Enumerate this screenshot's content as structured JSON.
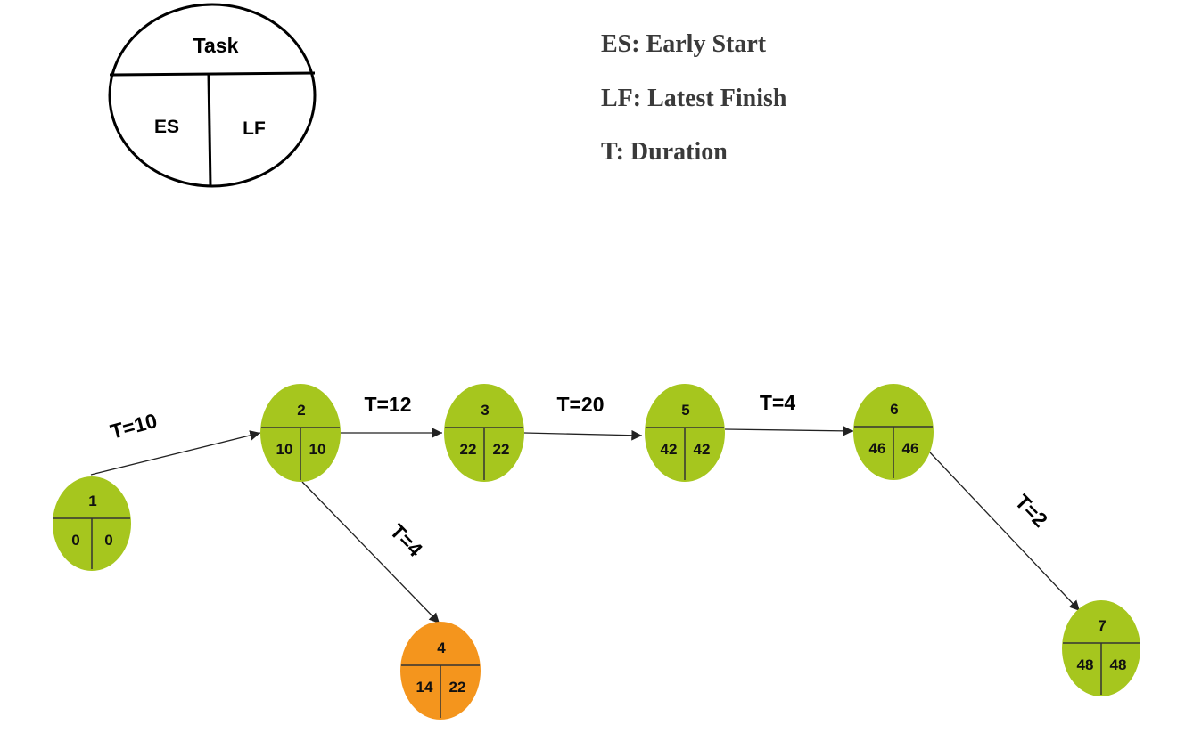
{
  "key": {
    "task_label": "Task",
    "es_label": "ES",
    "lf_label": "LF"
  },
  "legend": [
    "ES: Early Start",
    "LF: Latest Finish",
    "T: Duration"
  ],
  "colors": {
    "normal_node": "#a6c61e",
    "highlight_node": "#f4951d",
    "edge": "#222222"
  },
  "nodes": [
    {
      "id": "1",
      "es": "0",
      "lf": "0",
      "highlight": false
    },
    {
      "id": "2",
      "es": "10",
      "lf": "10",
      "highlight": false
    },
    {
      "id": "3",
      "es": "22",
      "lf": "22",
      "highlight": false
    },
    {
      "id": "4",
      "es": "14",
      "lf": "22",
      "highlight": true
    },
    {
      "id": "5",
      "es": "42",
      "lf": "42",
      "highlight": false
    },
    {
      "id": "6",
      "es": "46",
      "lf": "46",
      "highlight": false
    },
    {
      "id": "7",
      "es": "48",
      "lf": "48",
      "highlight": false
    }
  ],
  "edges": [
    {
      "from": "1",
      "to": "2",
      "label": "T=10"
    },
    {
      "from": "2",
      "to": "3",
      "label": "T=12"
    },
    {
      "from": "2",
      "to": "4",
      "label": "T=4"
    },
    {
      "from": "3",
      "to": "5",
      "label": "T=20"
    },
    {
      "from": "5",
      "to": "6",
      "label": "T=4"
    },
    {
      "from": "6",
      "to": "7",
      "label": "T=2"
    }
  ]
}
